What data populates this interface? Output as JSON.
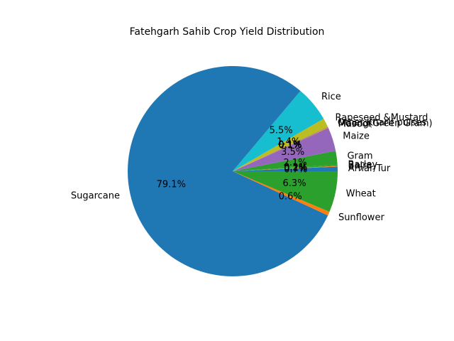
{
  "chart_data": {
    "type": "pie",
    "title": "Fatehgarh Sahib Crop Yield Distribution",
    "start_angle_deg": 0,
    "direction": "counterclockwise",
    "slices": [
      {
        "label": "Arhar/Tur",
        "value": 0.7,
        "pct_label": "0.7%",
        "color": "#1f77b4"
      },
      {
        "label": "Bajra",
        "value": 0.1,
        "pct_label": "0.1%",
        "color": "#ff7f0e"
      },
      {
        "label": "Barley",
        "value": 0.2,
        "pct_label": "0.2%",
        "color": "#2ca02c"
      },
      {
        "label": "Gram",
        "value": 2.1,
        "pct_label": "2.1%",
        "color": "#2ca02c"
      },
      {
        "label": "Maize",
        "value": 3.5,
        "pct_label": "3.5%",
        "color": "#9467bd"
      },
      {
        "label": "Masoor",
        "value": 0.1,
        "pct_label": "0.1%",
        "color": "#8c564b"
      },
      {
        "label": "Moong(Green Gram)",
        "value": 0.1,
        "pct_label": "0.1%",
        "color": "#e377c2"
      },
      {
        "label": "Other Kharif pulses",
        "value": 0.1,
        "pct_label": "0.1%",
        "color": "#7f7f7f"
      },
      {
        "label": "Rapeseed &Mustard",
        "value": 1.4,
        "pct_label": "1.4%",
        "color": "#bcbd22"
      },
      {
        "label": "Rice",
        "value": 5.5,
        "pct_label": "5.5%",
        "color": "#17becf"
      },
      {
        "label": "Sugarcane",
        "value": 79.1,
        "pct_label": "79.1%",
        "color": "#1f77b4"
      },
      {
        "label": "Sunflower",
        "value": 0.6,
        "pct_label": "0.6%",
        "color": "#ff7f0e"
      },
      {
        "label": "Wheat",
        "value": 6.3,
        "pct_label": "6.3%",
        "color": "#2ca02c"
      }
    ]
  }
}
